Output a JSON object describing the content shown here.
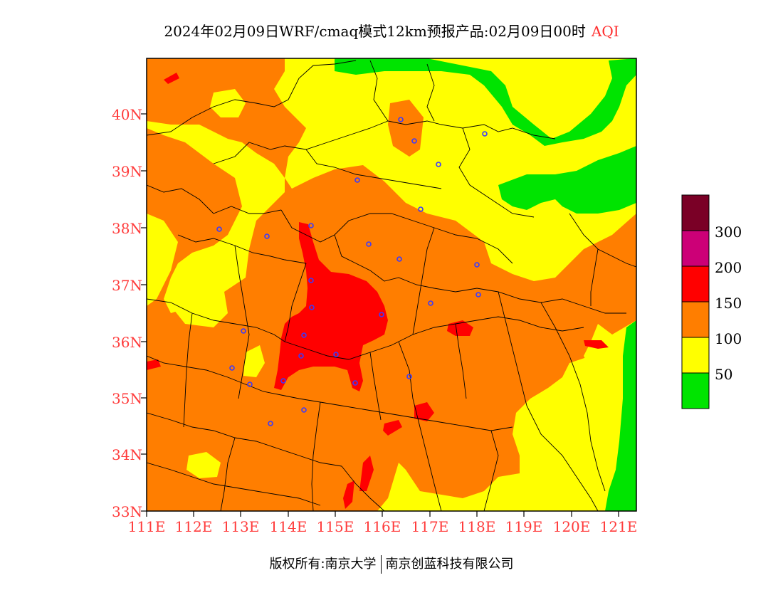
{
  "title": {
    "text": "2024年02月09日WRF/cmaq模式12km预报产品:02月09日00时",
    "variable": "AQI"
  },
  "axes": {
    "lat_labels": [
      "40N",
      "39N",
      "38N",
      "37N",
      "36N",
      "35N",
      "34N",
      "33N"
    ],
    "lon_labels": [
      "111E",
      "112E",
      "113E",
      "114E",
      "115E",
      "116E",
      "117E",
      "118E",
      "119E",
      "120E",
      "121E"
    ],
    "lat_range": [
      33,
      41
    ],
    "lon_range": [
      111,
      121.4
    ]
  },
  "legend": {
    "levels": [
      {
        "label": "",
        "color": "#7a0026"
      },
      {
        "label": "300",
        "color": "#cc0077"
      },
      {
        "label": "200",
        "color": "#ff0000"
      },
      {
        "label": "150",
        "color": "#ff7e00"
      },
      {
        "label": "100",
        "color": "#ffff00"
      },
      {
        "label": "50",
        "color": "#00e400"
      }
    ]
  },
  "footer": {
    "left": "版权所有:南京大学",
    "right": "南京创蓝科技有限公司"
  }
}
